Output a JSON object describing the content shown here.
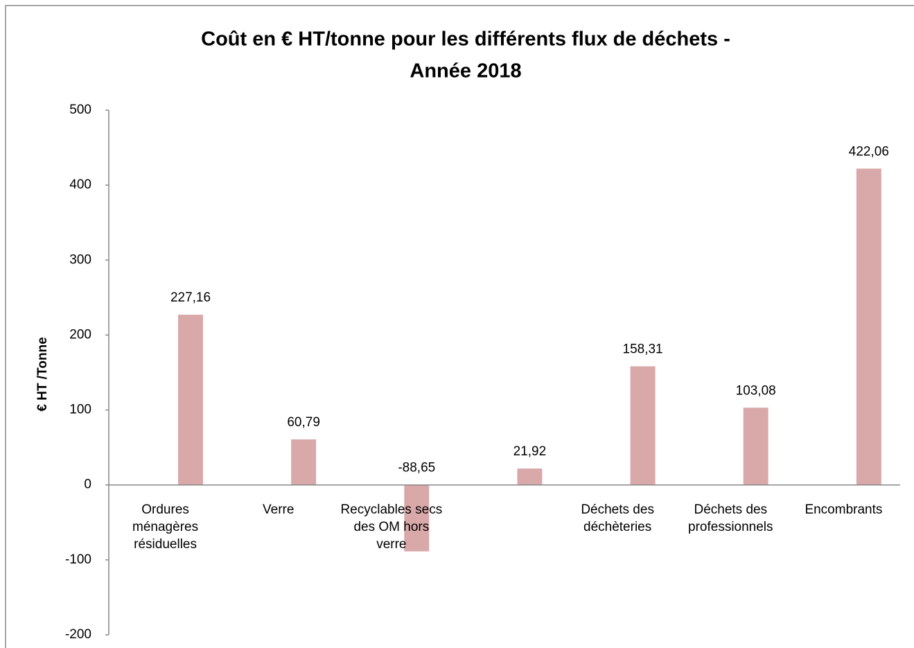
{
  "chart_data": {
    "type": "bar",
    "title": [
      "Coût en € HT/tonne pour les différents flux de déchets  -",
      "Année 2018"
    ],
    "y_label": "€ HT /Tonne",
    "categories": [
      "Ordures ménagères résiduelles",
      "Verre",
      "Recyclables secs des OM hors verre",
      null,
      "Déchets des déchèteries",
      "Déchets des professionnels",
      "Encombrants"
    ],
    "values": [
      227.16,
      60.79,
      -88.65,
      21.92,
      158.31,
      103.08,
      422.06
    ],
    "value_labels": [
      "227,16",
      "60,79",
      "-88,65",
      "21,92",
      "158,31",
      "103,08",
      "422,06"
    ],
    "color": "#d9a9a9",
    "ylim": [
      -200,
      500
    ],
    "yticks": [
      -200,
      -100,
      0,
      100,
      200,
      300,
      400,
      500
    ],
    "grid": false
  }
}
